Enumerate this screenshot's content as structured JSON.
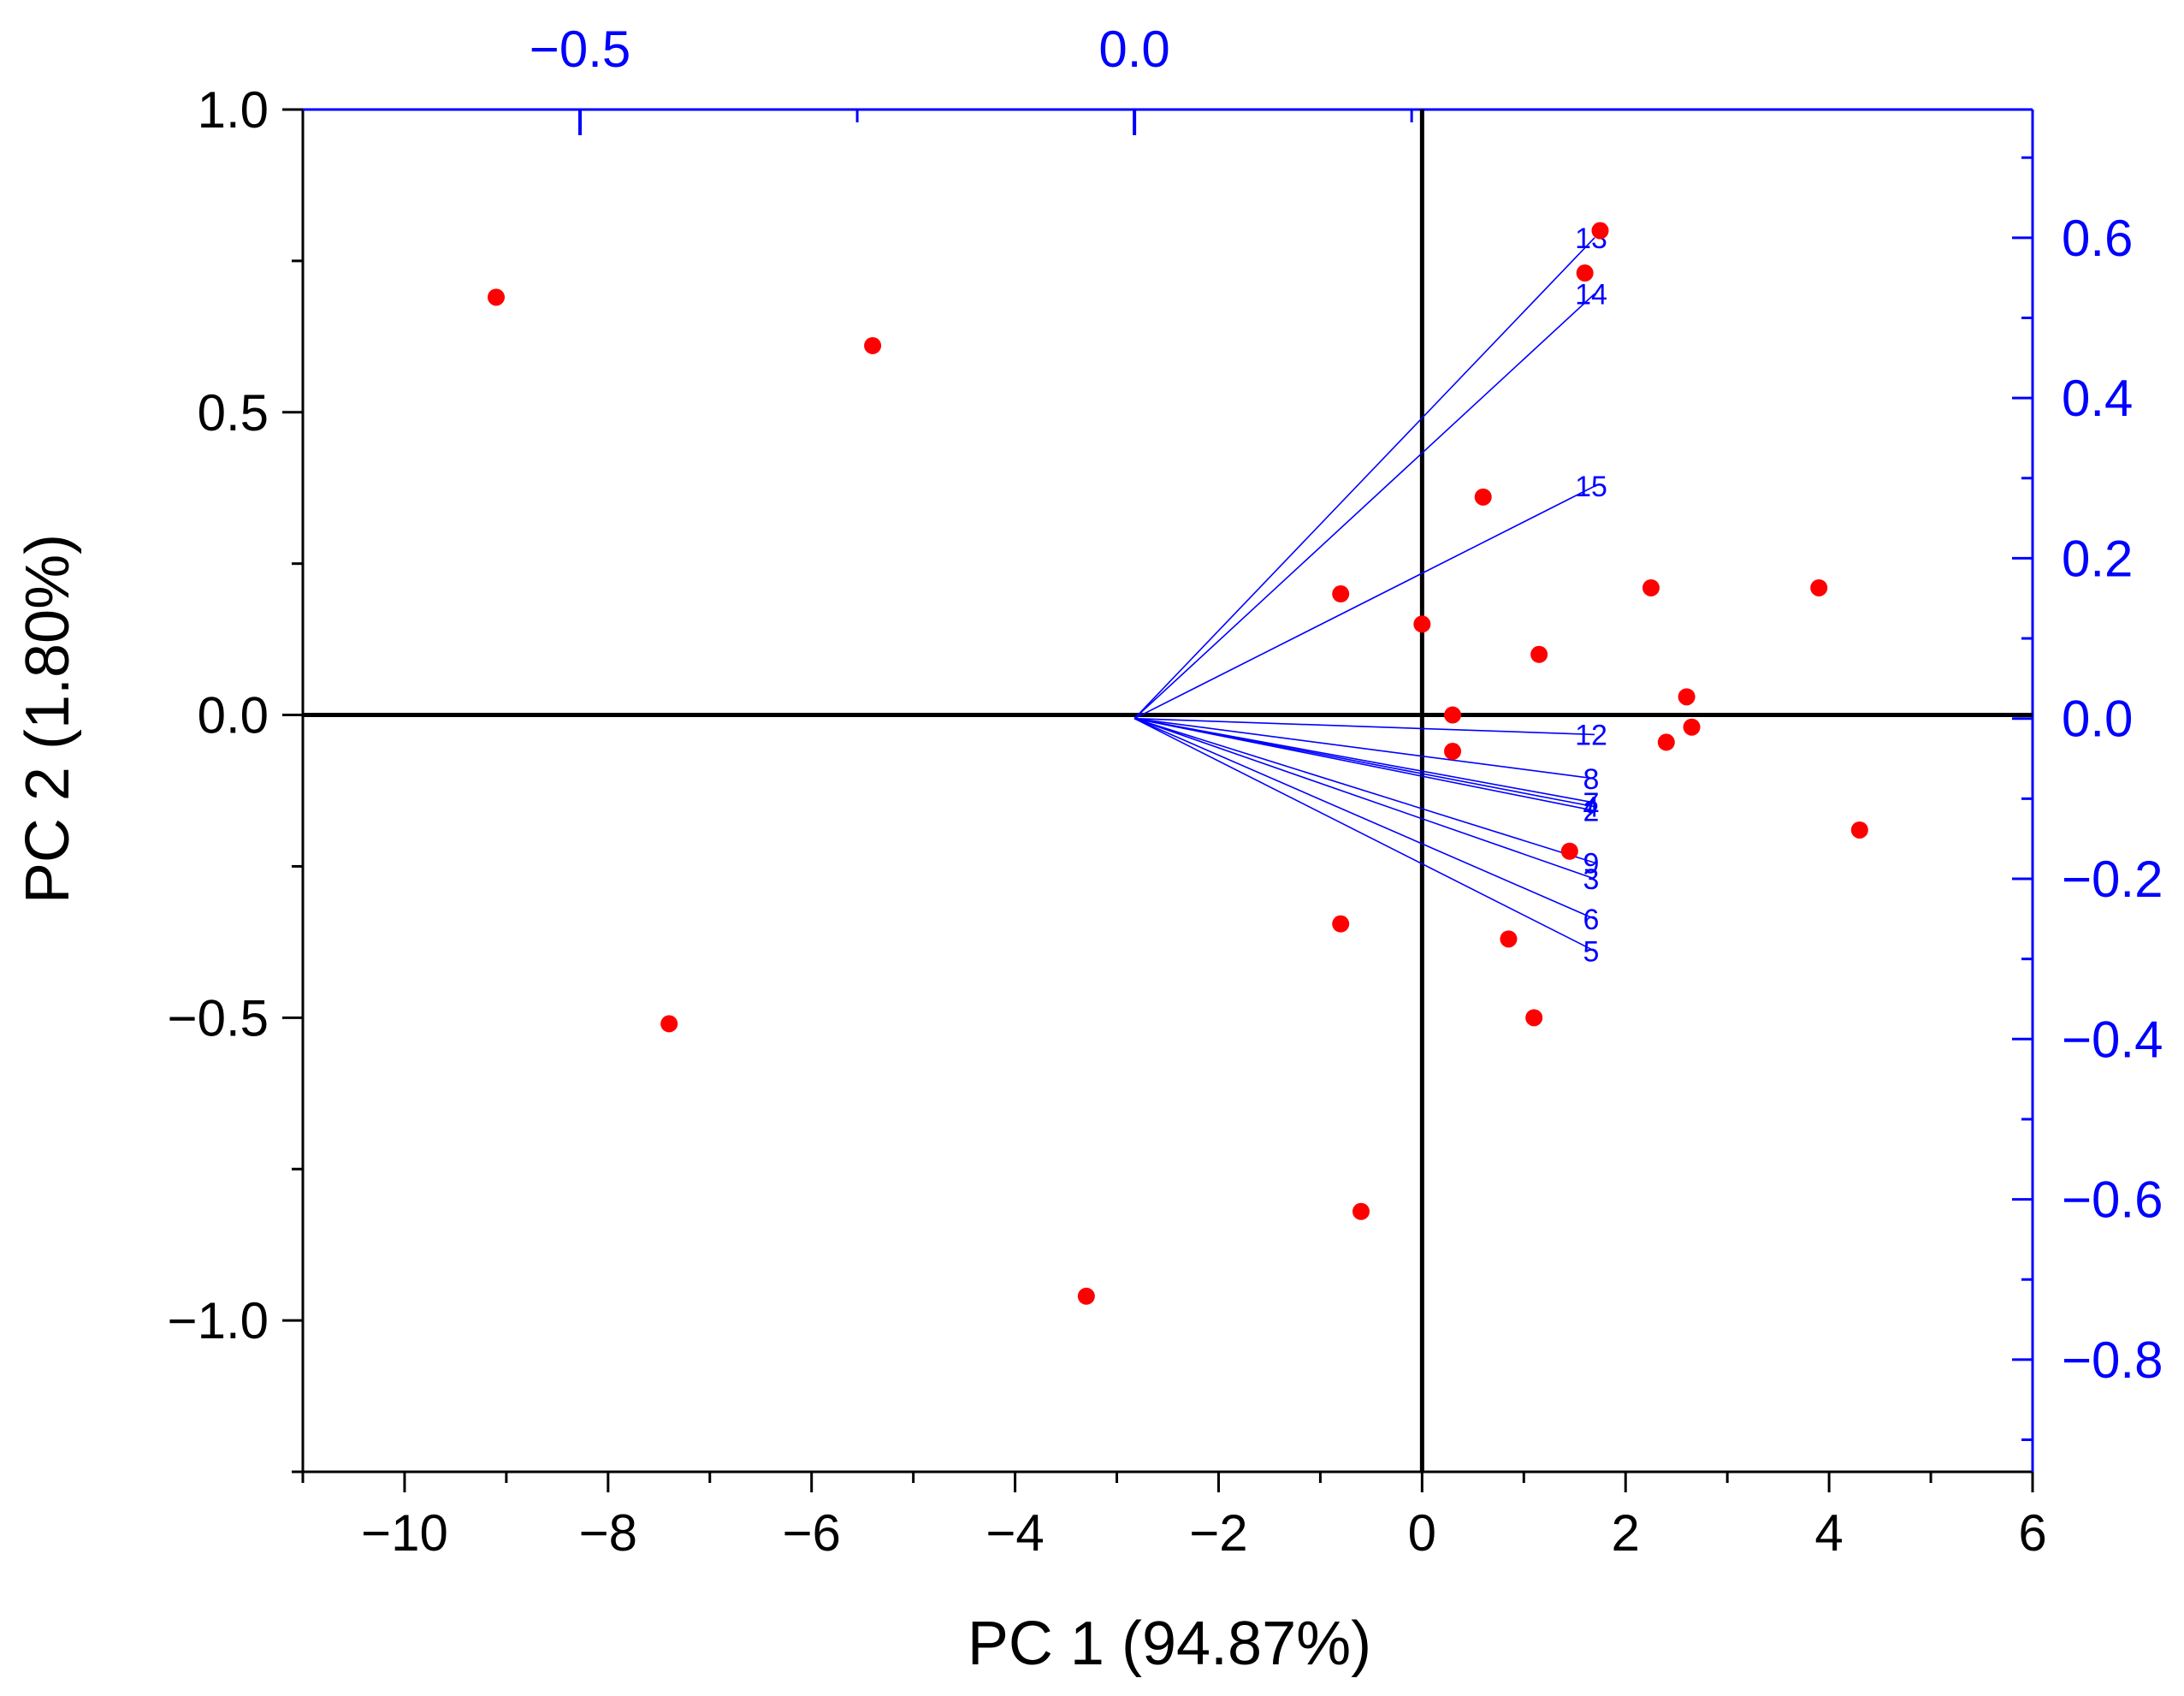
{
  "chart_data": {
    "type": "scatter",
    "subtype": "pca-biplot",
    "xlabel": "PC 1 (94.87%)",
    "ylabel": "PC 2 (1.80%)",
    "xlim": [
      -11,
      6
    ],
    "ylim": [
      -1.25,
      1.0
    ],
    "x_ticks": [
      -10,
      -8,
      -6,
      -4,
      -2,
      0,
      2,
      4,
      6
    ],
    "x_tick_labels": [
      "−10",
      "−8",
      "−6",
      "−4",
      "−2",
      "0",
      "2",
      "4",
      "6"
    ],
    "y_ticks": [
      -1.0,
      -0.5,
      0.0,
      0.5,
      1.0
    ],
    "y_tick_labels": [
      "−1.0",
      "−0.5",
      "0.0",
      "0.5",
      "1.0"
    ],
    "loadings_axes": {
      "xlim": [
        -0.75,
        0.81
      ],
      "ylim": [
        -0.94,
        0.76
      ],
      "top_ticks": [
        -0.5,
        0.0
      ],
      "top_tick_labels": [
        "−0.5",
        "0.0"
      ],
      "right_ticks": [
        -0.8,
        -0.6,
        -0.4,
        -0.2,
        0.0,
        0.2,
        0.4,
        0.6
      ],
      "right_tick_labels": [
        "−0.8",
        "−0.6",
        "−0.4",
        "−0.2",
        "0.0",
        "0.2",
        "0.4",
        "0.6"
      ],
      "color": "#0000ff"
    },
    "scores": {
      "name": "samples",
      "color": "#ff0000",
      "points": [
        [
          -9.1,
          0.69
        ],
        [
          -5.4,
          0.61
        ],
        [
          -7.4,
          -0.51
        ],
        [
          -3.3,
          -0.96
        ],
        [
          -0.8,
          0.2
        ],
        [
          -0.8,
          -0.345
        ],
        [
          -0.6,
          -0.82
        ],
        [
          0.0,
          0.15
        ],
        [
          0.3,
          0.0
        ],
        [
          0.3,
          -0.06
        ],
        [
          0.6,
          0.36
        ],
        [
          0.85,
          -0.37
        ],
        [
          1.1,
          -0.5
        ],
        [
          1.15,
          0.1
        ],
        [
          1.45,
          -0.225
        ],
        [
          1.6,
          0.73
        ],
        [
          1.75,
          0.8
        ],
        [
          2.25,
          0.21
        ],
        [
          2.4,
          -0.045
        ],
        [
          2.6,
          0.03
        ],
        [
          2.65,
          -0.02
        ],
        [
          3.9,
          0.21
        ],
        [
          4.3,
          -0.19
        ]
      ]
    },
    "loadings": [
      {
        "label": "13",
        "x": 0.415,
        "y": 0.6
      },
      {
        "label": "14",
        "x": 0.415,
        "y": 0.53
      },
      {
        "label": "15",
        "x": 0.415,
        "y": 0.29
      },
      {
        "label": "12",
        "x": 0.415,
        "y": -0.02
      },
      {
        "label": "8",
        "x": 0.415,
        "y": -0.075
      },
      {
        "label": "7",
        "x": 0.415,
        "y": -0.105
      },
      {
        "label": "4",
        "x": 0.415,
        "y": -0.11
      },
      {
        "label": "2",
        "x": 0.415,
        "y": -0.115
      },
      {
        "label": "9",
        "x": 0.415,
        "y": -0.18
      },
      {
        "label": "3",
        "x": 0.415,
        "y": -0.2
      },
      {
        "label": "6",
        "x": 0.415,
        "y": -0.25
      },
      {
        "label": "5",
        "x": 0.415,
        "y": -0.29
      }
    ]
  }
}
